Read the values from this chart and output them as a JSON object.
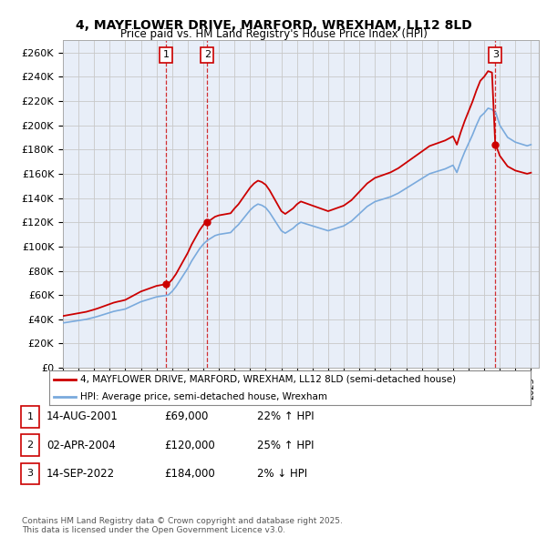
{
  "title": "4, MAYFLOWER DRIVE, MARFORD, WREXHAM, LL12 8LD",
  "subtitle": "Price paid vs. HM Land Registry's House Price Index (HPI)",
  "ylabel_values": [
    "£0",
    "£20K",
    "£40K",
    "£60K",
    "£80K",
    "£100K",
    "£120K",
    "£140K",
    "£160K",
    "£180K",
    "£200K",
    "£220K",
    "£240K",
    "£260K"
  ],
  "yticks": [
    0,
    20000,
    40000,
    60000,
    80000,
    100000,
    120000,
    140000,
    160000,
    180000,
    200000,
    220000,
    240000,
    260000
  ],
  "ylim": [
    0,
    270000
  ],
  "xlim_start": 1995.0,
  "xlim_end": 2025.5,
  "background_color": "#ffffff",
  "plot_bg_color": "#e8eef8",
  "grid_color": "#c8c8c8",
  "sale_color": "#cc0000",
  "hpi_color": "#7aaadd",
  "legend_label_sale": "4, MAYFLOWER DRIVE, MARFORD, WREXHAM, LL12 8LD (semi-detached house)",
  "legend_label_hpi": "HPI: Average price, semi-detached house, Wrexham",
  "sales": [
    {
      "num": 1,
      "date_x": 2001.62,
      "price": 69000,
      "hpi_pct": "22% ↑ HPI",
      "label_date": "14-AUG-2001",
      "label_price": "£69,000"
    },
    {
      "num": 2,
      "date_x": 2004.25,
      "price": 120000,
      "hpi_pct": "25% ↑ HPI",
      "label_date": "02-APR-2004",
      "label_price": "£120,000"
    },
    {
      "num": 3,
      "date_x": 2022.71,
      "price": 184000,
      "hpi_pct": "2% ↓ HPI",
      "label_date": "14-SEP-2022",
      "label_price": "£184,000"
    }
  ],
  "footer": "Contains HM Land Registry data © Crown copyright and database right 2025.\nThis data is licensed under the Open Government Licence v3.0.",
  "hpi_data_x": [
    1995.0,
    1995.25,
    1995.5,
    1995.75,
    1996.0,
    1996.25,
    1996.5,
    1996.75,
    1997.0,
    1997.25,
    1997.5,
    1997.75,
    1998.0,
    1998.25,
    1998.5,
    1998.75,
    1999.0,
    1999.25,
    1999.5,
    1999.75,
    2000.0,
    2000.25,
    2000.5,
    2000.75,
    2001.0,
    2001.25,
    2001.5,
    2001.75,
    2002.0,
    2002.25,
    2002.5,
    2002.75,
    2003.0,
    2003.25,
    2003.5,
    2003.75,
    2004.0,
    2004.25,
    2004.5,
    2004.75,
    2005.0,
    2005.25,
    2005.5,
    2005.75,
    2006.0,
    2006.25,
    2006.5,
    2006.75,
    2007.0,
    2007.25,
    2007.5,
    2007.75,
    2008.0,
    2008.25,
    2008.5,
    2008.75,
    2009.0,
    2009.25,
    2009.5,
    2009.75,
    2010.0,
    2010.25,
    2010.5,
    2010.75,
    2011.0,
    2011.25,
    2011.5,
    2011.75,
    2012.0,
    2012.25,
    2012.5,
    2012.75,
    2013.0,
    2013.25,
    2013.5,
    2013.75,
    2014.0,
    2014.25,
    2014.5,
    2014.75,
    2015.0,
    2015.25,
    2015.5,
    2015.75,
    2016.0,
    2016.25,
    2016.5,
    2016.75,
    2017.0,
    2017.25,
    2017.5,
    2017.75,
    2018.0,
    2018.25,
    2018.5,
    2018.75,
    2019.0,
    2019.25,
    2019.5,
    2019.75,
    2020.0,
    2020.25,
    2020.5,
    2020.75,
    2021.0,
    2021.25,
    2021.5,
    2021.75,
    2022.0,
    2022.25,
    2022.5,
    2022.75,
    2023.0,
    2023.25,
    2023.5,
    2023.75,
    2024.0,
    2024.25,
    2024.5,
    2024.75,
    2025.0
  ],
  "hpi_data_y": [
    37000,
    37500,
    38000,
    38500,
    39000,
    39500,
    40000,
    40800,
    41600,
    42500,
    43500,
    44500,
    45500,
    46500,
    47200,
    47800,
    48500,
    50000,
    51500,
    53000,
    54500,
    55500,
    56500,
    57500,
    58500,
    59000,
    59500,
    60000,
    63000,
    67000,
    72000,
    77000,
    82000,
    88000,
    93000,
    98000,
    102000,
    105000,
    107000,
    109000,
    110000,
    110500,
    111000,
    111500,
    115000,
    118000,
    122000,
    126000,
    130000,
    133000,
    135000,
    134000,
    132000,
    128000,
    123000,
    118000,
    113000,
    111000,
    113000,
    115000,
    118000,
    120000,
    119000,
    118000,
    117000,
    116000,
    115000,
    114000,
    113000,
    114000,
    115000,
    116000,
    117000,
    119000,
    121000,
    124000,
    127000,
    130000,
    133000,
    135000,
    137000,
    138000,
    139000,
    140000,
    141000,
    142500,
    144000,
    146000,
    148000,
    150000,
    152000,
    154000,
    156000,
    158000,
    160000,
    161000,
    162000,
    163000,
    164000,
    165500,
    167000,
    161000,
    170000,
    178000,
    185000,
    192000,
    200000,
    207000,
    210000,
    214000,
    213000,
    210000,
    200000,
    195000,
    190000,
    188000,
    186000,
    185000,
    184000,
    183000,
    184000
  ]
}
